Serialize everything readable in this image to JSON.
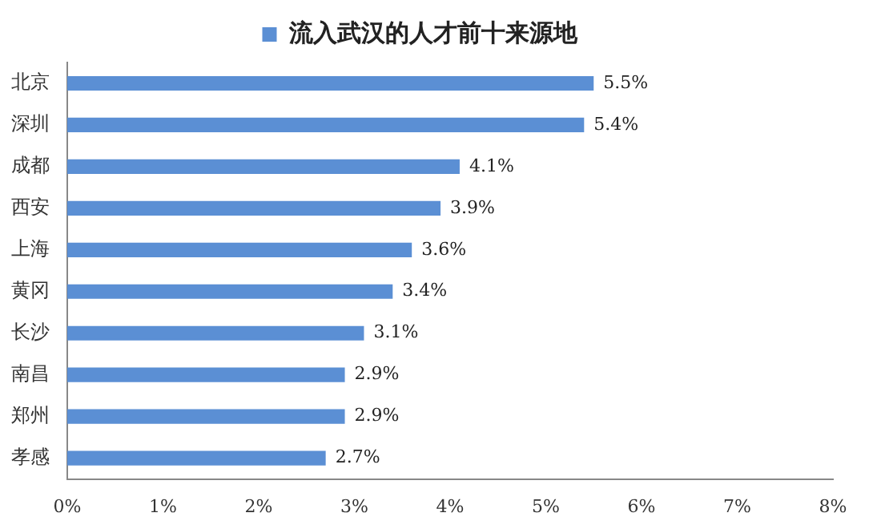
{
  "chart_data": {
    "type": "bar",
    "orientation": "horizontal",
    "categories": [
      "北京",
      "深圳",
      "成都",
      "西安",
      "上海",
      "黄冈",
      "长沙",
      "南昌",
      "郑州",
      "孝感"
    ],
    "series": [
      {
        "name": "流入武汉的人才前十来源地",
        "color": "#5b8fd4",
        "values": [
          5.5,
          5.4,
          4.1,
          3.9,
          3.6,
          3.4,
          3.1,
          2.9,
          2.9,
          2.7
        ],
        "value_labels": [
          "5.5%",
          "5.4%",
          "4.1%",
          "3.9%",
          "3.6%",
          "3.4%",
          "3.1%",
          "2.9%",
          "2.9%",
          "2.7%"
        ]
      }
    ],
    "xlim": [
      0,
      8
    ],
    "xticks": [
      {
        "value": 0,
        "label": "0%"
      },
      {
        "value": 1,
        "label": "1%"
      },
      {
        "value": 2,
        "label": "2%"
      },
      {
        "value": 3,
        "label": "3%"
      },
      {
        "value": 4,
        "label": "4%"
      },
      {
        "value": 5,
        "label": "5%"
      },
      {
        "value": 6,
        "label": "6%"
      },
      {
        "value": 7,
        "label": "7%"
      },
      {
        "value": 8,
        "label": "8%"
      }
    ],
    "grid": false,
    "legend": "top"
  }
}
